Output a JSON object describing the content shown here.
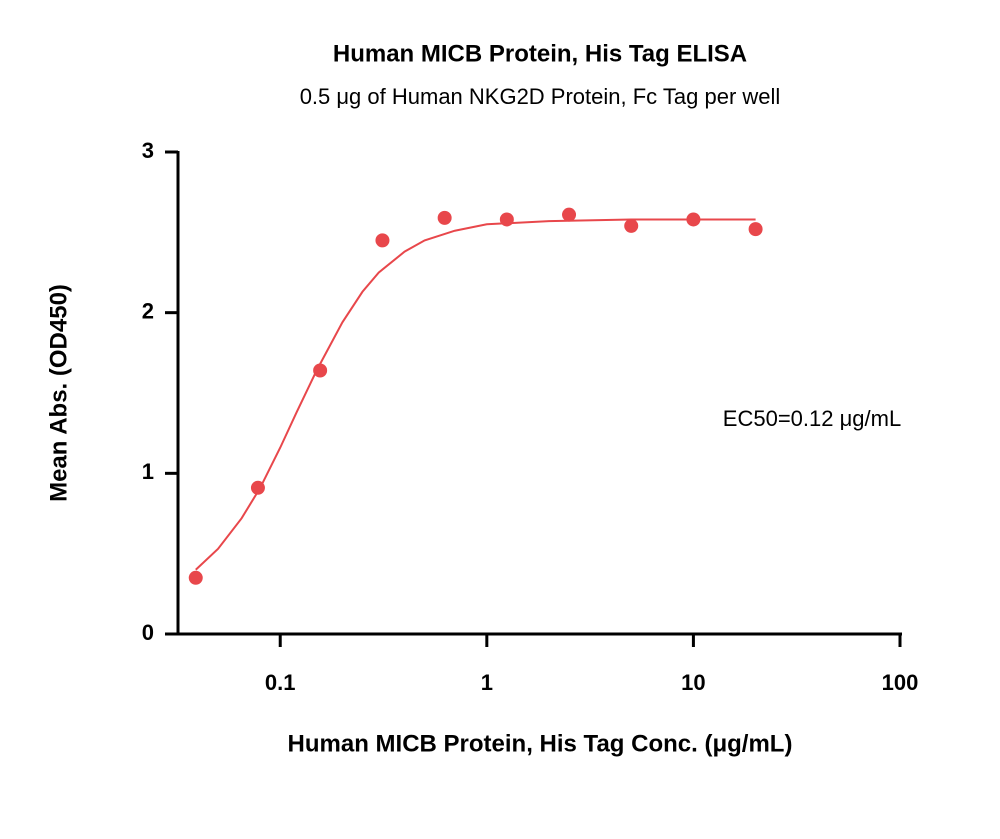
{
  "chart_data": {
    "type": "scatter",
    "title": "Human MICB Protein, His Tag ELISA",
    "subtitle": "0.5 μg of Human NKG2D Protein, Fc Tag per well",
    "x_label": "Human MICB Protein, His Tag Conc. (μg/mL)",
    "y_label": "Mean Abs. (OD450)",
    "annotation": "EC50=0.12 μg/mL",
    "xscale": "log",
    "xlim": [
      0.032,
      100
    ],
    "xticks": [
      0.1,
      1,
      10,
      100
    ],
    "ylim": [
      0,
      3
    ],
    "yticks": [
      0,
      1,
      2,
      3
    ],
    "grid": false,
    "series": [
      {
        "type": "scatter",
        "color": "#e8474b",
        "x": [
          0.039,
          0.078,
          0.156,
          0.3125,
          0.625,
          1.25,
          2.5,
          5,
          10,
          20
        ],
        "values": [
          0.35,
          0.91,
          1.64,
          2.45,
          2.59,
          2.58,
          2.61,
          2.54,
          2.58,
          2.52
        ]
      },
      {
        "type": "line",
        "color": "#e8474b",
        "x": [
          0.039,
          0.05,
          0.065,
          0.08,
          0.1,
          0.12,
          0.15,
          0.2,
          0.25,
          0.3,
          0.4,
          0.5,
          0.7,
          1,
          2,
          5,
          20
        ],
        "values": [
          0.4,
          0.53,
          0.72,
          0.91,
          1.16,
          1.38,
          1.64,
          1.94,
          2.13,
          2.25,
          2.38,
          2.45,
          2.51,
          2.55,
          2.57,
          2.58,
          2.58
        ]
      }
    ]
  }
}
